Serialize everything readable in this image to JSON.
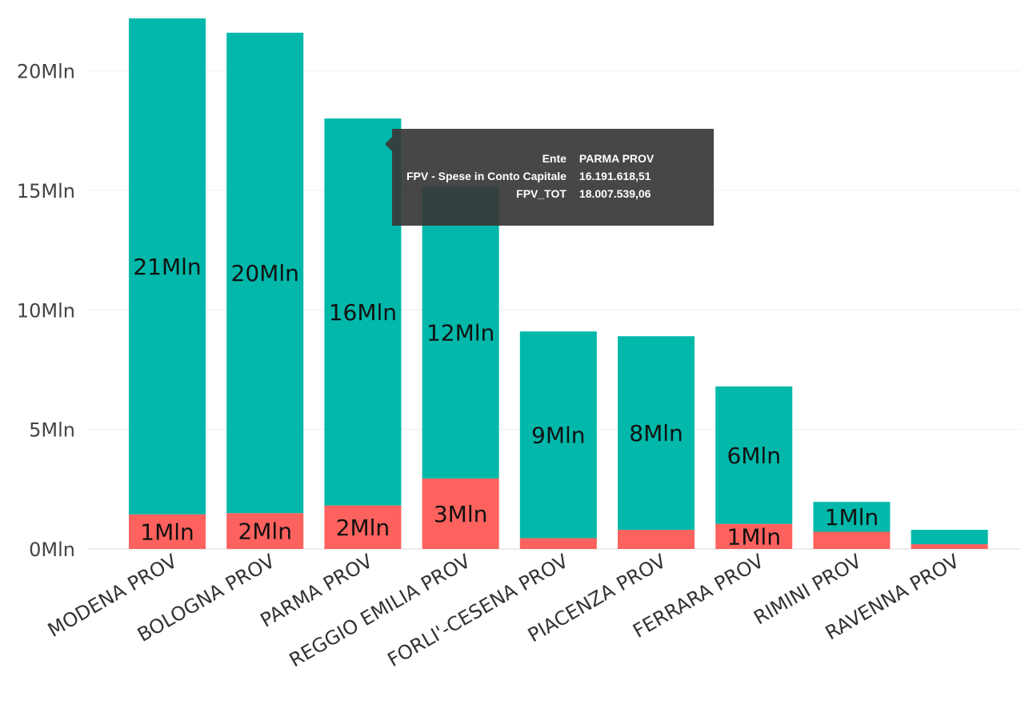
{
  "chart_data": {
    "type": "bar",
    "stacked": true,
    "categories": [
      "MODENA PROV",
      "BOLOGNA PROV",
      "PARMA PROV",
      "REGGIO EMILIA PROV",
      "FORLI'-CESENA PROV",
      "PIACENZA PROV",
      "FERRARA PROV",
      "RIMINI PROV",
      "RAVENNA PROV"
    ],
    "series": [
      {
        "values": [
          1.45,
          1.5,
          1.82,
          2.95,
          0.45,
          0.8,
          1.05,
          0.72,
          0.2
        ],
        "color": "#FD625E",
        "labels": [
          "1Mln",
          "2Mln",
          "2Mln",
          "3Mln",
          "",
          "",
          "1Mln",
          "",
          ""
        ]
      },
      {
        "values": [
          20.75,
          20.1,
          16.19,
          12.2,
          8.65,
          8.1,
          5.75,
          1.25,
          0.6
        ],
        "color": "#01B8AA",
        "labels": [
          "21Mln",
          "20Mln",
          "16Mln",
          "12Mln",
          "9Mln",
          "8Mln",
          "6Mln",
          "1Mln",
          ""
        ]
      }
    ],
    "y_ticks": [
      "0Mln",
      "5Mln",
      "10Mln",
      "15Mln",
      "20Mln"
    ],
    "ylim": [
      0,
      22.5
    ],
    "grid": true
  },
  "tooltip": {
    "rows": [
      {
        "key": "Ente",
        "value": "PARMA PROV"
      },
      {
        "key": "FPV - Spese in Conto Capitale",
        "value": "16.191.618,51"
      },
      {
        "key": "FPV_TOT",
        "value": "18.007.539,06"
      }
    ]
  }
}
